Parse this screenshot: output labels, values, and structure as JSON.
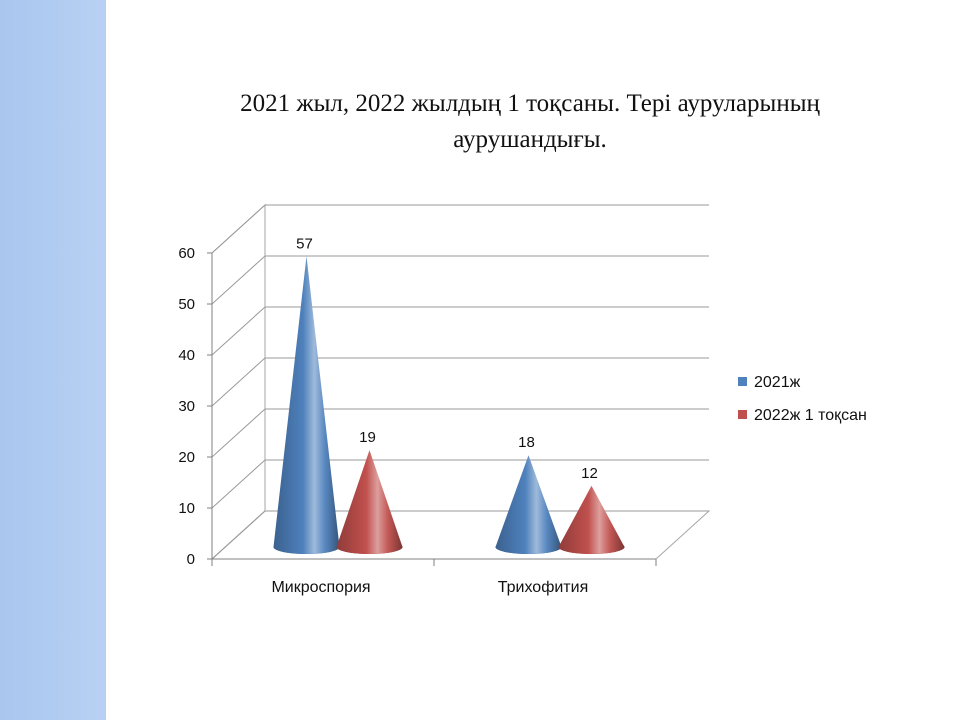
{
  "slide": {
    "title_line1": "2021 жыл, 2022  жылдың 1 тоқсаны. Тері  ауруларының",
    "title_line2": "аурушандығы."
  },
  "chart_data": {
    "type": "bar",
    "style": "3d-cone",
    "title": "2021 жыл, 2022  жылдың 1 тоқсаны. Тері  ауруларының аурушандығы.",
    "categories": [
      "Микроспория",
      "Трихофития"
    ],
    "series": [
      {
        "name": "2021ж",
        "values": [
          57,
          18
        ],
        "color": "#4f81bd"
      },
      {
        "name": "2022ж 1 тоқсан",
        "values": [
          19,
          12
        ],
        "color": "#c0504d"
      }
    ],
    "ylim": [
      0,
      60
    ],
    "yticks": [
      0,
      10,
      20,
      30,
      40,
      50,
      60
    ],
    "xlabel": "",
    "ylabel": "",
    "grid": true,
    "legend": "right"
  }
}
